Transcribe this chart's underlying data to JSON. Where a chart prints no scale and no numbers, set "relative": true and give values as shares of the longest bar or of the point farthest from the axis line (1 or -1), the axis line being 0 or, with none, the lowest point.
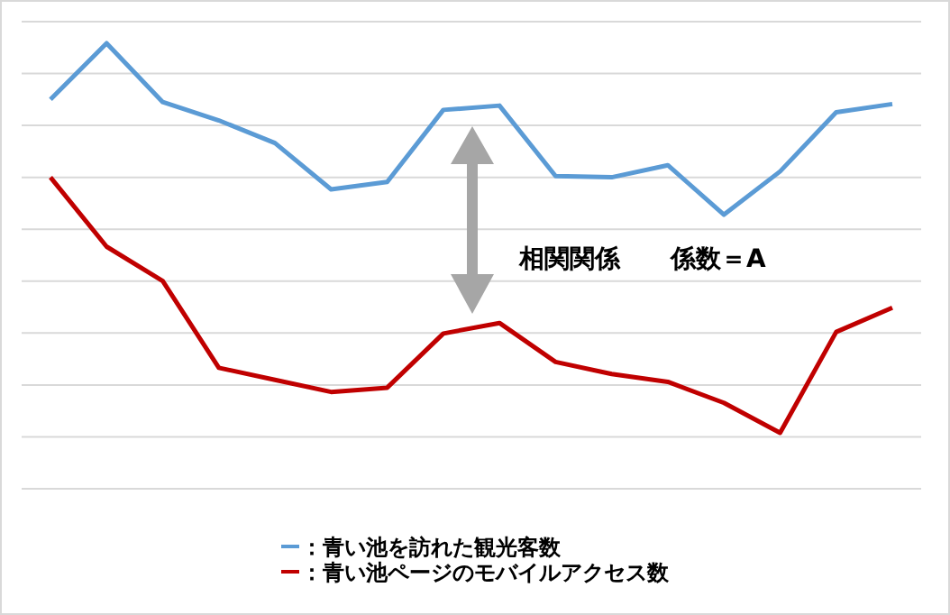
{
  "chart_data": {
    "type": "line",
    "relative": true,
    "grid": true,
    "legend": "bottom",
    "marker": "none",
    "line_style": "solid",
    "categories": [
      null,
      null,
      null,
      null,
      null,
      null,
      null,
      null,
      null,
      null,
      null,
      null,
      null,
      null,
      null,
      null
    ],
    "annotations": [
      "相関関係　　係数＝A"
    ],
    "series": [
      {
        "name": "：青い池を訪れた観光客数",
        "color": "#5b9bd5",
        "values": [
          0.856,
          1,
          0.849,
          0.802,
          0.744,
          0.625,
          0.644,
          0.829,
          0.84,
          0.659,
          0.656,
          0.687,
          0.56,
          0.671,
          0.823,
          0.844
        ]
      },
      {
        "name": "：青い池ページのモバイルアクセス数",
        "color": "#c00000",
        "values": [
          0.656,
          0.478,
          0.39,
          0.167,
          0.136,
          0.105,
          0.116,
          0.255,
          0.282,
          0.182,
          0.151,
          0.131,
          0.077,
          0,
          0.259,
          0.321
        ]
      }
    ]
  }
}
